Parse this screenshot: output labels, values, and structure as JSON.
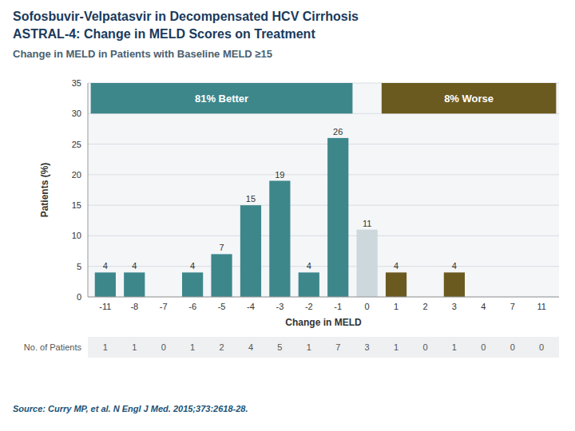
{
  "chart_data": {
    "type": "bar",
    "title": [
      "Sofosbuvir-Velpatasvir in Decompensated HCV Cirrhosis",
      "ASTRAL-4: Change in MELD Scores on Treatment"
    ],
    "subtitle": "Change in MELD in Patients with Baseline MELD ≥15",
    "x_label": "Change in MELD",
    "y_label": "Patients (%)",
    "categories": [
      "-11",
      "-8",
      "-7",
      "-6",
      "-5",
      "-4",
      "-3",
      "-2",
      "-1",
      "0",
      "1",
      "2",
      "3",
      "4",
      "7",
      "11"
    ],
    "values": [
      4,
      4,
      0,
      4,
      7,
      15,
      19,
      4,
      26,
      11,
      4,
      0,
      4,
      0,
      0,
      0
    ],
    "colors": [
      "#3d878b",
      "#3d878b",
      "#3d878b",
      "#3d878b",
      "#3d878b",
      "#3d878b",
      "#3d878b",
      "#3d878b",
      "#3d878b",
      "#ccd8dc",
      "#6b5a20",
      "#6b5a20",
      "#6b5a20",
      "#6b5a20",
      "#6b5a20",
      "#6b5a20"
    ],
    "data_labels": true,
    "ylim": [
      0,
      35
    ],
    "yticks": [
      0,
      5,
      10,
      15,
      20,
      25,
      30,
      35
    ],
    "grid": true,
    "annotations": [
      {
        "text": "81% Better",
        "color": "#3d878b",
        "from": "-11",
        "to": "-1",
        "y_from": 30,
        "y_to": 35
      },
      {
        "text": "8% Worse",
        "color": "#6b5a20",
        "from": "1",
        "to": "11",
        "y_from": 30,
        "y_to": 35
      }
    ],
    "footer": {
      "label": "No. of Patients",
      "values": [
        1,
        1,
        0,
        1,
        2,
        4,
        5,
        1,
        7,
        3,
        1,
        0,
        1,
        0,
        0,
        0
      ]
    },
    "source": "Source: Curry MP, et al. N Engl J Med. 2015;373:2618-28."
  }
}
